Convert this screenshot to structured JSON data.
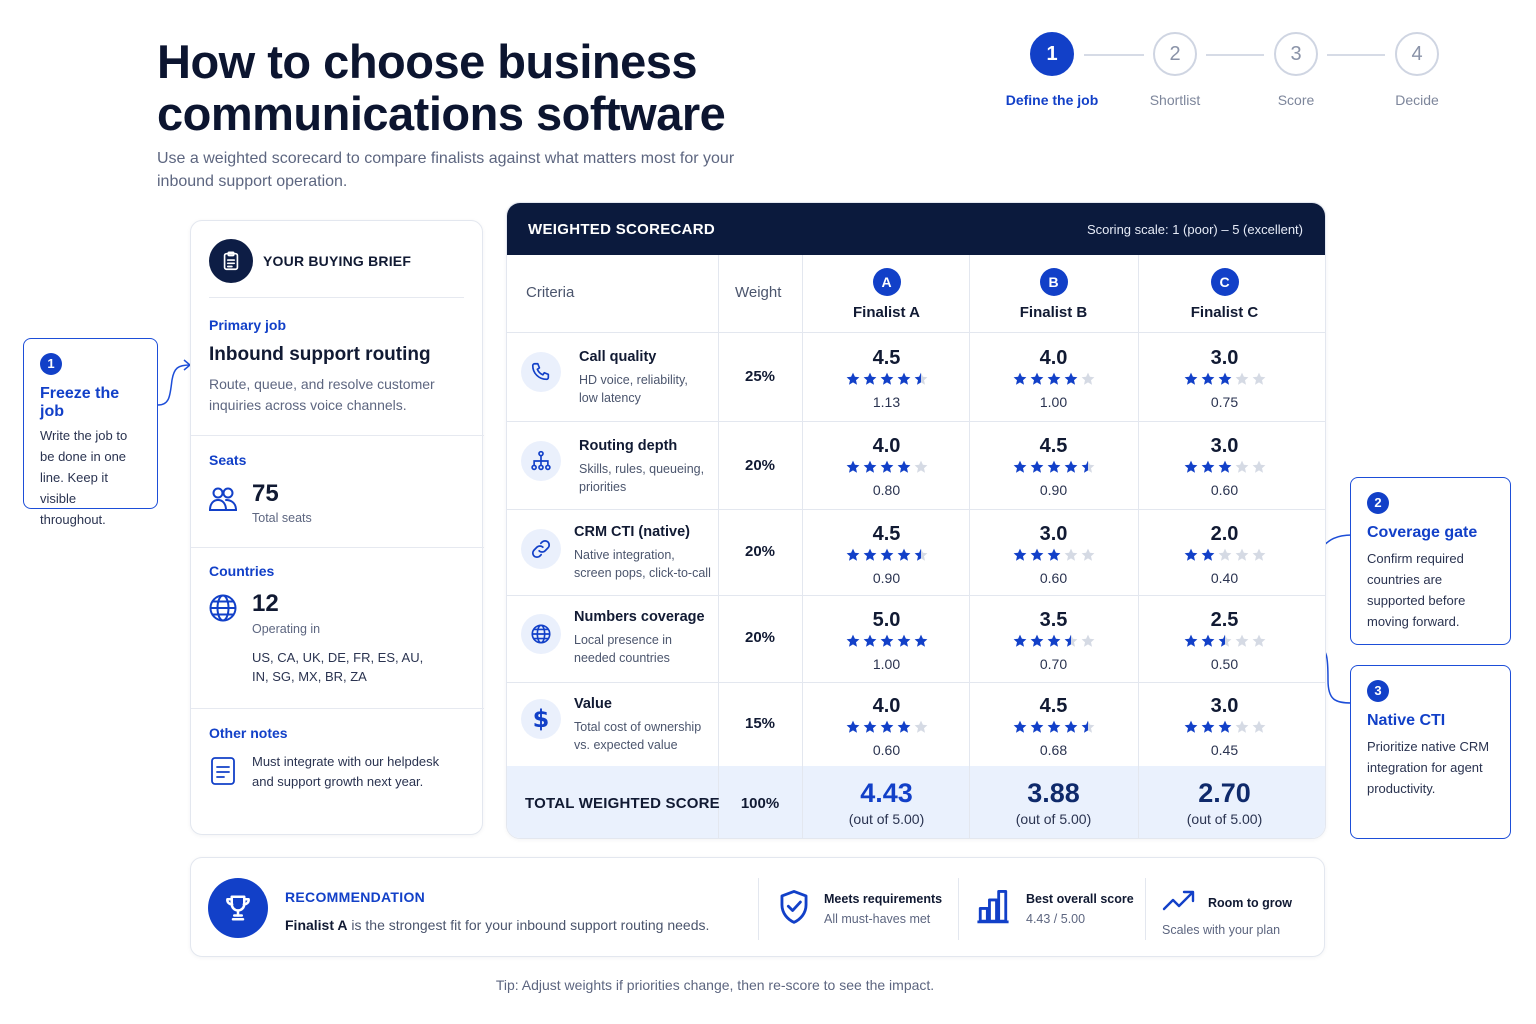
{
  "header": {
    "title": "How to choose business communications software",
    "subtitle": "Use a weighted scorecard to compare finalists against what matters most for your inbound support operation."
  },
  "stepper": {
    "steps": [
      {
        "num": "1",
        "label": "Define the job",
        "active": true
      },
      {
        "num": "2",
        "label": "Shortlist",
        "active": false
      },
      {
        "num": "3",
        "label": "Score",
        "active": false
      },
      {
        "num": "4",
        "label": "Decide",
        "active": false
      }
    ]
  },
  "callouts": {
    "freeze": {
      "num": "1",
      "title": "Freeze the job",
      "text": "Write the job to be done in one line. Keep it visible throughout."
    },
    "coverage": {
      "num": "2",
      "title": "Coverage gate",
      "text": "Confirm required countries are supported before moving forward."
    },
    "native": {
      "num": "3",
      "title": "Native CTI",
      "text": "Prioritize native CRM integration for agent productivity."
    }
  },
  "brief": {
    "title": "YOUR BUYING BRIEF",
    "primary_label": "Primary job",
    "primary_title": "Inbound support routing",
    "primary_desc": "Route, queue, and resolve customer inquiries across voice channels.",
    "seats_label": "Seats",
    "seats_value": "75",
    "seats_caption": "Total seats",
    "countries_label": "Countries",
    "countries_value": "12",
    "countries_caption": "Operating in",
    "countries_list_1": "US, CA, UK, DE, FR, ES, AU,",
    "countries_list_2": "IN, SG, MX, BR, ZA",
    "notes_label": "Other notes",
    "notes_text_1": "Must integrate with our helpdesk",
    "notes_text_2": "and support growth next year."
  },
  "scorecard": {
    "title": "WEIGHTED SCORECARD",
    "scale": "Scoring scale: 1 (poor) – 5 (excellent)",
    "col_criteria": "Criteria",
    "col_weight": "Weight",
    "finalists": [
      {
        "badge": "A",
        "name": "Finalist A"
      },
      {
        "badge": "B",
        "name": "Finalist B"
      },
      {
        "badge": "C",
        "name": "Finalist C"
      }
    ],
    "rows": [
      {
        "icon": "phone-icon",
        "name": "Call quality",
        "desc1": "HD voice, reliability,",
        "desc2": "low latency",
        "weight": "25%",
        "scores": [
          "4.5",
          "4.0",
          "3.0"
        ],
        "weighted": [
          "1.13",
          "1.00",
          "0.75"
        ]
      },
      {
        "icon": "routing-hierarchy-icon",
        "name": "Routing depth",
        "desc1": "Skills, rules, queueing,",
        "desc2": "priorities",
        "weight": "20%",
        "scores": [
          "4.0",
          "4.5",
          "3.0"
        ],
        "weighted": [
          "0.80",
          "0.90",
          "0.60"
        ]
      },
      {
        "icon": "link-icon",
        "name": "CRM CTI (native)",
        "desc1": "Native integration,",
        "desc2": "screen pops, click-to-call",
        "weight": "20%",
        "scores": [
          "4.5",
          "3.0",
          "2.0"
        ],
        "weighted": [
          "0.90",
          "0.60",
          "0.40"
        ]
      },
      {
        "icon": "globe-icon",
        "name": "Numbers coverage",
        "desc1": "Local presence in",
        "desc2": "needed countries",
        "weight": "20%",
        "scores": [
          "5.0",
          "3.5",
          "2.5"
        ],
        "weighted": [
          "1.00",
          "0.70",
          "0.50"
        ]
      },
      {
        "icon": "dollar-icon",
        "name": "Value",
        "desc1": "Total cost of ownership",
        "desc2": "vs. expected value",
        "weight": "15%",
        "scores": [
          "4.0",
          "4.5",
          "3.0"
        ],
        "weighted": [
          "0.60",
          "0.68",
          "0.45"
        ]
      }
    ],
    "total_label": "TOTAL WEIGHTED SCORE",
    "total_weight": "100%",
    "totals": [
      "4.43",
      "3.88",
      "2.70"
    ],
    "total_out_of": "(out of 5.00)"
  },
  "recommendation": {
    "label": "RECOMMENDATION",
    "winner": "Finalist A",
    "text": " is the strongest fit for your inbound support routing needs.",
    "features": [
      {
        "icon": "shield-check-icon",
        "title": "Meets requirements",
        "sub": "All must-haves met"
      },
      {
        "icon": "bar-chart-icon",
        "title": "Best overall score",
        "sub": "4.43 / 5.00"
      },
      {
        "icon": "trend-up-icon",
        "title": "Room to grow",
        "sub": "Scales with your plan"
      }
    ]
  },
  "tip": "Tip: Adjust weights if priorities change, then re-score to see the impact.",
  "colors": {
    "accent": "#1240c8",
    "navy": "#0b1a3d",
    "star_off": "#d5dae4"
  }
}
